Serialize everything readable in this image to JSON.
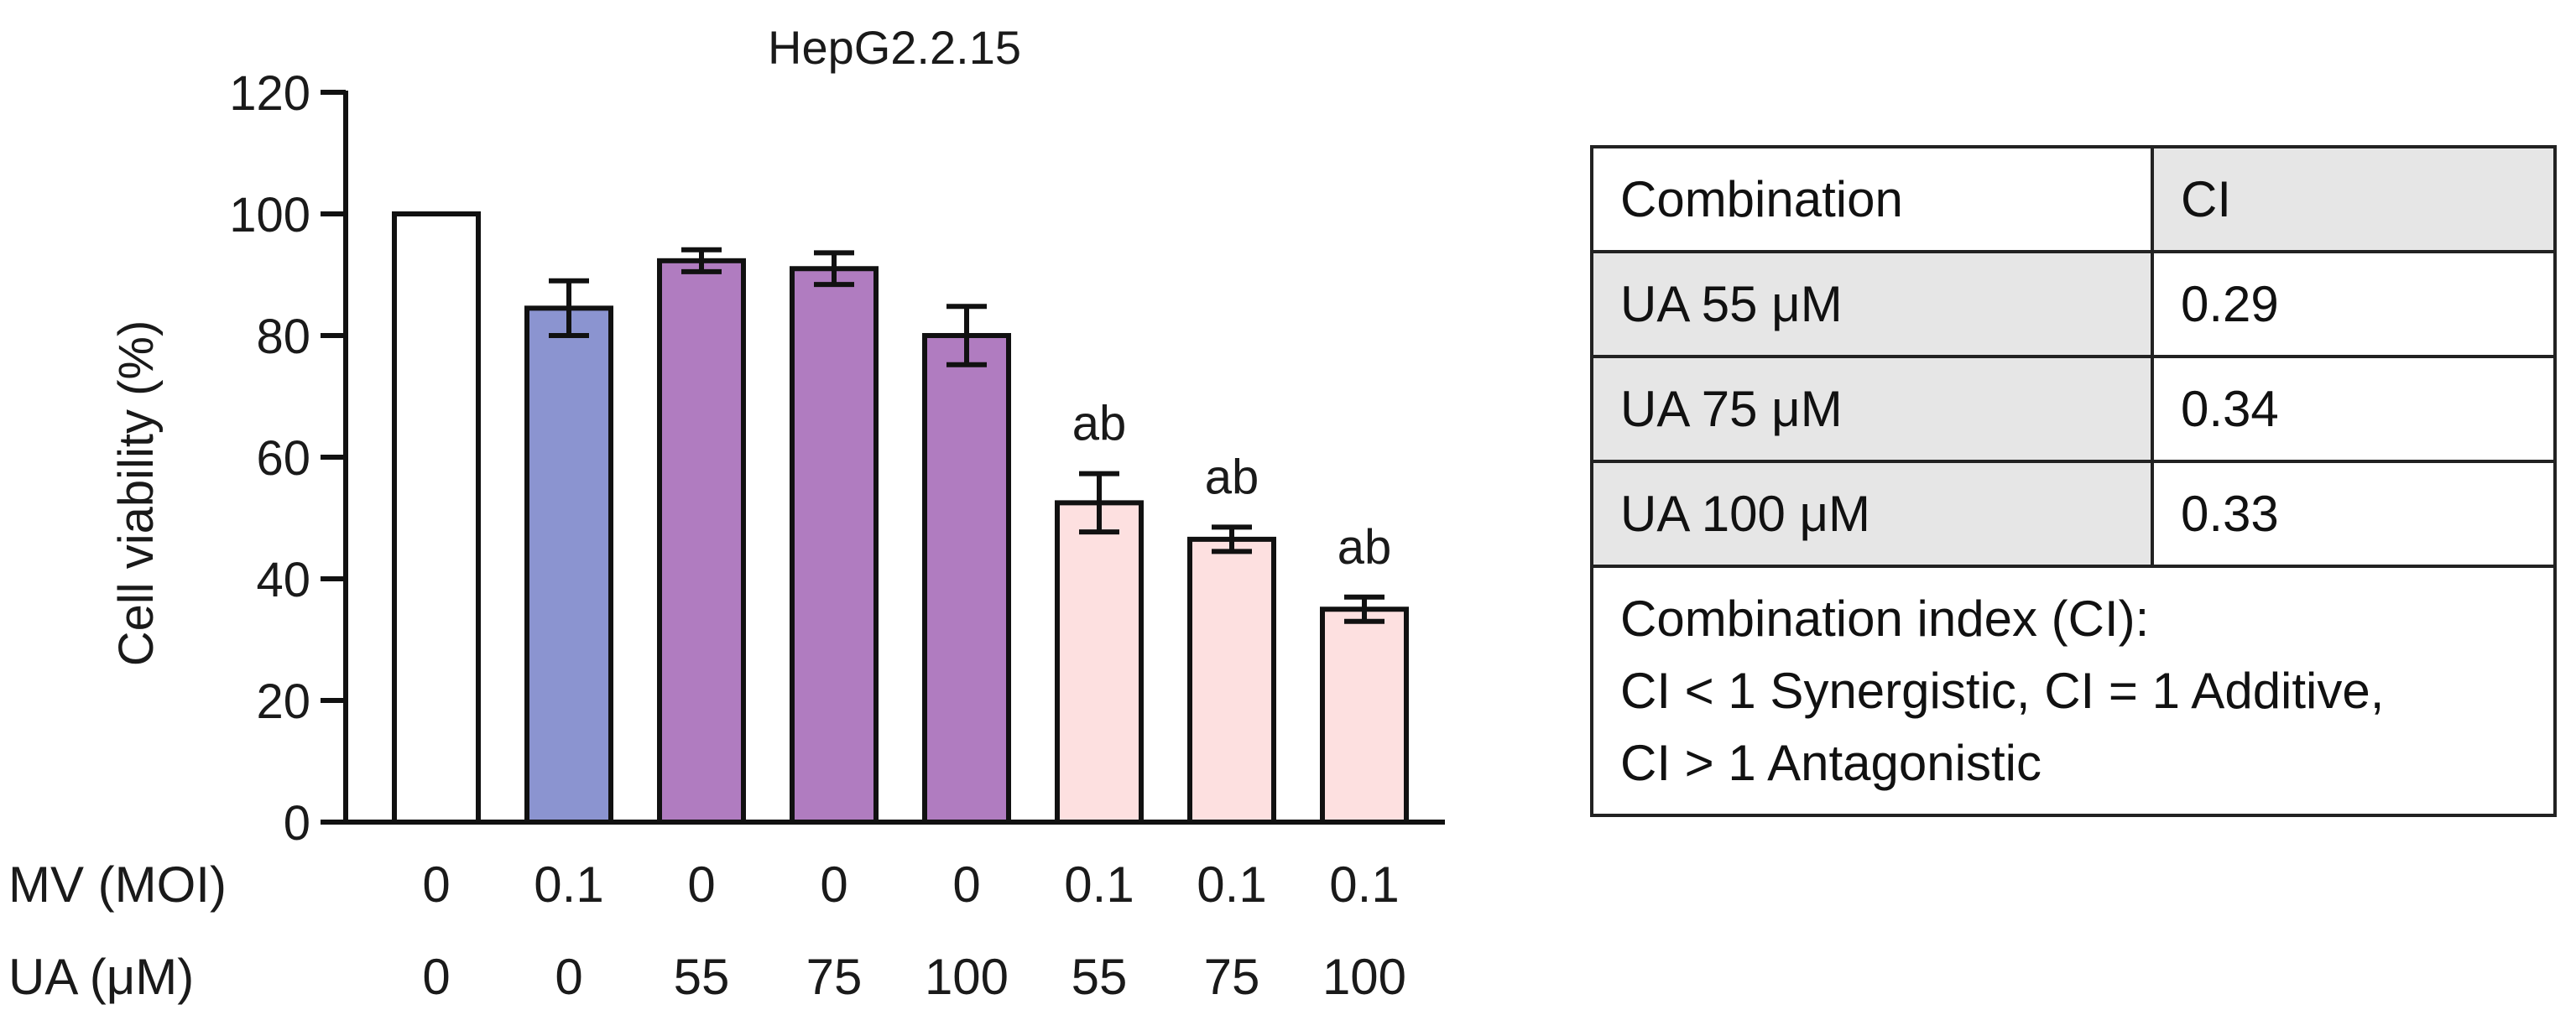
{
  "chart_data": {
    "type": "bar",
    "title": "HepG2.2.15",
    "ylabel": "Cell viability (%)",
    "xlabel": "",
    "ylim": [
      0,
      120
    ],
    "yticks": [
      0,
      20,
      40,
      60,
      80,
      100,
      120
    ],
    "grid": false,
    "row_labels": {
      "mv": "MV (MOI)",
      "ua": "UA (μM)"
    },
    "bars": [
      {
        "mv": "0",
        "ua": "0",
        "value": 100,
        "error": 0,
        "label": "",
        "color": "#ffffff"
      },
      {
        "mv": "0.1",
        "ua": "0",
        "value": 84.5,
        "error": 4.5,
        "label": "",
        "color": "#8b94d0"
      },
      {
        "mv": "0",
        "ua": "55",
        "value": 92.3,
        "error": 1.8,
        "label": "",
        "color": "#b07cc0"
      },
      {
        "mv": "0",
        "ua": "75",
        "value": 91.0,
        "error": 2.6,
        "label": "",
        "color": "#b07cc0"
      },
      {
        "mv": "0",
        "ua": "100",
        "value": 80.0,
        "error": 4.8,
        "label": "",
        "color": "#b07cc0"
      },
      {
        "mv": "0.1",
        "ua": "55",
        "value": 52.5,
        "error": 4.8,
        "label": "ab",
        "color": "#fde0e0"
      },
      {
        "mv": "0.1",
        "ua": "75",
        "value": 46.5,
        "error": 2.0,
        "label": "ab",
        "color": "#fde0e0"
      },
      {
        "mv": "0.1",
        "ua": "100",
        "value": 35.0,
        "error": 2.0,
        "label": "ab",
        "color": "#fde0e0"
      }
    ]
  },
  "table": {
    "header": [
      "Combination",
      "CI"
    ],
    "rows": [
      {
        "combination": "UA 55 μM",
        "ci": "0.29"
      },
      {
        "combination": "UA 75 μM",
        "ci": "0.34"
      },
      {
        "combination": "UA 100 μM",
        "ci": "0.33"
      }
    ],
    "note": [
      "Combination index (CI):",
      "CI < 1 Synergistic, CI = 1 Additive,",
      "CI > 1 Antagonistic"
    ]
  }
}
